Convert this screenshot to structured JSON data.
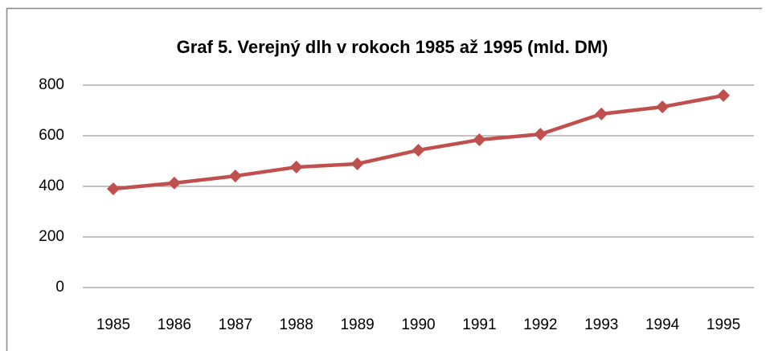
{
  "chart_data": {
    "type": "line",
    "title": "Graf 5. Verejný dlh v rokoch 1985 až 1995 (mld. DM)",
    "categories": [
      "1985",
      "1986",
      "1987",
      "1988",
      "1989",
      "1990",
      "1991",
      "1992",
      "1993",
      "1994",
      "1995"
    ],
    "values": [
      390,
      413,
      441,
      476,
      489,
      543,
      584,
      606,
      686,
      714,
      759
    ],
    "color": "#c0504d",
    "ylim": [
      0,
      800
    ],
    "yticks": [
      0,
      200,
      400,
      600,
      800
    ],
    "grid": true
  }
}
